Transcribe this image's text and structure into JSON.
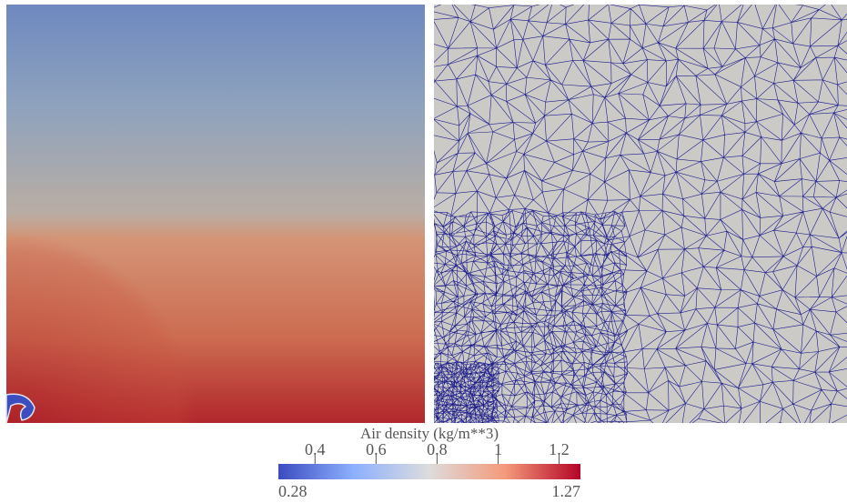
{
  "colorbar": {
    "title": "Air density (kg/m**3)",
    "range": [
      0.28,
      1.27
    ],
    "ticks": [
      0.4,
      0.6,
      0.8,
      1,
      1.2
    ]
  }
}
